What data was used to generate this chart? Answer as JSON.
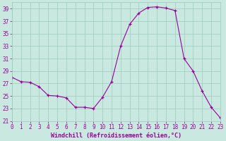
{
  "title": "",
  "xlabel": "Windchill (Refroidissement éolien,°C)",
  "ylabel": "",
  "background_color": "#c8e8e0",
  "grid_color": "#99ccbb",
  "line_color": "#990099",
  "marker_color": "#990099",
  "xlim": [
    0,
    23
  ],
  "ylim": [
    21,
    40
  ],
  "yticks": [
    21,
    23,
    25,
    27,
    29,
    31,
    33,
    35,
    37,
    39
  ],
  "xticks": [
    0,
    1,
    2,
    3,
    4,
    5,
    6,
    7,
    8,
    9,
    10,
    11,
    12,
    13,
    14,
    15,
    16,
    17,
    18,
    19,
    20,
    21,
    22,
    23
  ],
  "hours": [
    0,
    1,
    2,
    3,
    4,
    5,
    6,
    7,
    8,
    9,
    10,
    11,
    12,
    13,
    14,
    15,
    16,
    17,
    18,
    19,
    20,
    21,
    22,
    23
  ],
  "values": [
    28.0,
    27.3,
    27.2,
    26.5,
    25.1,
    25.0,
    24.7,
    23.2,
    23.2,
    23.0,
    24.8,
    27.3,
    33.0,
    36.5,
    38.3,
    39.2,
    39.3,
    39.1,
    38.7,
    31.0,
    29.0,
    25.8,
    23.2,
    21.5
  ]
}
